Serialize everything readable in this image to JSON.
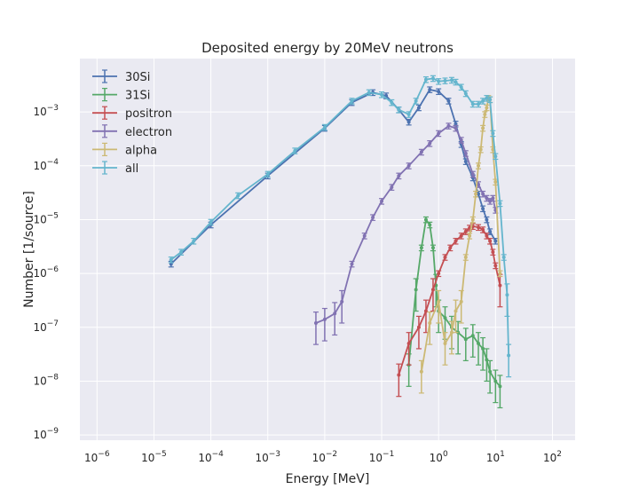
{
  "chart_data": {
    "type": "line",
    "title": "Deposited energy by 20MeV neutrons",
    "xlabel": "Energy [MeV]",
    "ylabel": "Number [1/source]",
    "xscale": "log",
    "yscale": "log",
    "xlim": [
      5e-07,
      250
    ],
    "ylim": [
      8e-10,
      0.0098
    ],
    "x_ticks": [
      {
        "value": 1e-06,
        "base": "10",
        "exp": "−6"
      },
      {
        "value": 1e-05,
        "base": "10",
        "exp": "−5"
      },
      {
        "value": 0.0001,
        "base": "10",
        "exp": "−4"
      },
      {
        "value": 0.001,
        "base": "10",
        "exp": "−3"
      },
      {
        "value": 0.01,
        "base": "10",
        "exp": "−2"
      },
      {
        "value": 0.1,
        "base": "10",
        "exp": "−1"
      },
      {
        "value": 1,
        "base": "10",
        "exp": "0"
      },
      {
        "value": 10,
        "base": "10",
        "exp": "1"
      },
      {
        "value": 100,
        "base": "10",
        "exp": "2"
      }
    ],
    "y_ticks": [
      {
        "value": 1e-09,
        "base": "10",
        "exp": "−9"
      },
      {
        "value": 1e-08,
        "base": "10",
        "exp": "−8"
      },
      {
        "value": 1e-07,
        "base": "10",
        "exp": "−7"
      },
      {
        "value": 1e-06,
        "base": "10",
        "exp": "−6"
      },
      {
        "value": 1e-05,
        "base": "10",
        "exp": "−5"
      },
      {
        "value": 0.0001,
        "base": "10",
        "exp": "−4"
      },
      {
        "value": 0.001,
        "base": "10",
        "exp": "−3"
      }
    ],
    "grid": true,
    "legend_position": "top-left",
    "series": [
      {
        "name": "30Si",
        "color": "#4c72b0",
        "x": [
          2e-05,
          0.0001,
          0.001,
          0.01,
          0.03,
          0.07,
          0.12,
          0.2,
          0.3,
          0.45,
          0.7,
          1.0,
          1.5,
          2.0,
          2.5,
          3.0,
          4.0,
          5.0,
          6.0,
          7.0,
          8.0,
          10.0
        ],
        "y": [
          1.5e-06,
          8e-06,
          6.5e-05,
          0.0005,
          0.0015,
          0.0023,
          0.002,
          0.0011,
          0.00065,
          0.0012,
          0.0026,
          0.0024,
          0.0016,
          0.0006,
          0.00025,
          0.00012,
          6e-05,
          3e-05,
          1.6e-05,
          1e-05,
          6e-06,
          4e-06
        ]
      },
      {
        "name": "31Si",
        "color": "#55a868",
        "x": [
          0.3,
          0.4,
          0.5,
          0.6,
          0.7,
          0.8,
          0.9,
          1.0,
          1.3,
          1.7,
          2.2,
          3.0,
          4.0,
          5.0,
          6.0,
          7.0,
          8.0,
          10.0,
          12.0
        ],
        "y": [
          2e-08,
          5e-07,
          3e-06,
          1e-05,
          8e-06,
          3e-06,
          6e-07,
          2e-07,
          1.5e-07,
          1e-07,
          8e-08,
          6e-08,
          7e-08,
          5e-08,
          4e-08,
          2.5e-08,
          1.5e-08,
          1e-08,
          8e-09
        ]
      },
      {
        "name": "positron",
        "color": "#c44e52",
        "x": [
          0.2,
          0.3,
          0.45,
          0.6,
          0.8,
          1.0,
          1.3,
          1.6,
          2.0,
          2.5,
          3.0,
          3.5,
          4.0,
          5.0,
          6.0,
          7.0,
          8.0,
          9.0,
          10.0,
          12.0
        ],
        "y": [
          1.3e-08,
          5e-08,
          1e-07,
          2e-07,
          5e-07,
          1e-06,
          2e-06,
          3e-06,
          4e-06,
          5e-06,
          6e-06,
          7e-06,
          7.5e-06,
          7.2e-06,
          6.5e-06,
          5e-06,
          4e-06,
          2.5e-06,
          1.4e-06,
          6e-07
        ]
      },
      {
        "name": "electron",
        "color": "#8172b2",
        "x": [
          0.007,
          0.01,
          0.015,
          0.02,
          0.03,
          0.05,
          0.07,
          0.1,
          0.15,
          0.2,
          0.3,
          0.5,
          0.7,
          1.0,
          1.5,
          2.0,
          2.5,
          3.0,
          4.0,
          5.0,
          6.0,
          7.0,
          8.0,
          9.0,
          10.0
        ],
        "y": [
          1.2e-07,
          1.4e-07,
          1.8e-07,
          3e-07,
          1.5e-06,
          5e-06,
          1.1e-05,
          2.2e-05,
          4e-05,
          6.5e-05,
          0.0001,
          0.00018,
          0.00026,
          0.0004,
          0.00055,
          0.0005,
          0.0003,
          0.00017,
          7e-05,
          4.5e-05,
          3e-05,
          2.5e-05,
          2.2e-05,
          2.5e-05,
          1.5e-05
        ]
      },
      {
        "name": "alpha",
        "color": "#ccb974",
        "x": [
          0.5,
          0.7,
          1.0,
          1.3,
          1.7,
          2.0,
          2.5,
          3.0,
          3.5,
          4.0,
          4.5,
          5.0,
          5.5,
          6.0,
          6.5,
          7.0,
          7.5,
          8.0,
          9.0,
          10.0,
          12.0
        ],
        "y": [
          1.5e-08,
          1.2e-07,
          3e-07,
          5e-08,
          8e-08,
          2e-07,
          3e-07,
          2e-06,
          5e-06,
          1e-05,
          3e-05,
          0.0001,
          0.0002,
          0.0005,
          0.0009,
          0.0012,
          0.0018,
          0.0017,
          0.0002,
          5e-05,
          1e-06
        ]
      },
      {
        "name": "all",
        "color": "#64b5cd",
        "x": [
          2e-05,
          3e-05,
          5e-05,
          0.0001,
          0.0003,
          0.001,
          0.003,
          0.01,
          0.03,
          0.06,
          0.1,
          0.15,
          0.2,
          0.3,
          0.4,
          0.6,
          0.8,
          1.0,
          1.3,
          1.7,
          2.0,
          2.5,
          3.0,
          4.0,
          5.0,
          6.0,
          7.0,
          8.0,
          9.0,
          10.0,
          12.0,
          14.0,
          16.0,
          17.0
        ],
        "y": [
          1.8e-06,
          2.5e-06,
          4e-06,
          9e-06,
          2.8e-05,
          7e-05,
          0.00019,
          0.00052,
          0.0016,
          0.0023,
          0.0021,
          0.0015,
          0.0011,
          0.0009,
          0.0016,
          0.004,
          0.0042,
          0.0037,
          0.0038,
          0.0039,
          0.0036,
          0.0029,
          0.0022,
          0.0014,
          0.0014,
          0.0016,
          0.0018,
          0.0017,
          0.0004,
          0.00015,
          2e-05,
          2e-06,
          4e-07,
          3e-08
        ]
      }
    ]
  }
}
